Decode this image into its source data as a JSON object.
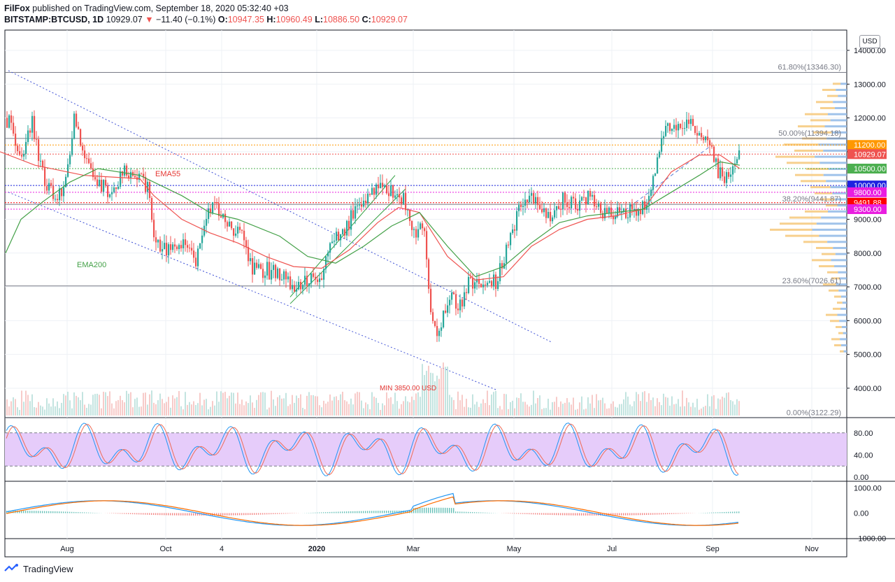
{
  "header": {
    "author": "FilFox",
    "published_text": " published on TradingView.com, September 18, 2020 05:32:40 +03",
    "symbol": "BITSTAMP:BTCUSD, 1D",
    "last": "10929.07",
    "change": "−11.40 (−0.1%)",
    "open_label": "O:",
    "open": "10947.35",
    "high_label": "H:",
    "high": "10960.49",
    "low_label": "L:",
    "low": "10886.50",
    "close_label": "C:",
    "close": "10929.07"
  },
  "currency_badge": "USD",
  "footer": {
    "brand": "TradingView"
  },
  "chart_data": {
    "type": "line",
    "x_axis": {
      "ticks": [
        "Aug",
        "Oct",
        "4",
        "2020",
        "Mar",
        "May",
        "Jul",
        "Sep",
        "Nov"
      ]
    },
    "price_axis": {
      "ticks": [
        4000,
        5000,
        6000,
        7000,
        8000,
        9000,
        10000,
        11000,
        12000,
        13000,
        14000
      ],
      "tick_labels": [
        "4000.00",
        "5000.00",
        "6000.00",
        "7000.00",
        "8000.00",
        "9000.00",
        "10000.00",
        "11000.00",
        "12000.00",
        "13000.00",
        "14000.00"
      ],
      "ylim": [
        3150,
        14600
      ]
    },
    "price_labels": [
      {
        "value": 11200,
        "text": "11200.00",
        "color": "#ff9800"
      },
      {
        "value": 10929.07,
        "text": "10929.07",
        "color": "#ef5350"
      },
      {
        "value": 10500,
        "text": "10500.00",
        "color": "#4caf50"
      },
      {
        "value": 10000,
        "text": "10000.00",
        "color": "#1e22e0"
      },
      {
        "value": 9800,
        "text": "9800.00",
        "color": "#e91ee0"
      },
      {
        "value": 9491.88,
        "text": "9491.88",
        "color": "#ff0000"
      },
      {
        "value": 9300,
        "text": "9300.00",
        "color": "#e91ee0"
      }
    ],
    "fibonacci": [
      {
        "level": "61.80%",
        "price": 13346.3,
        "label": "61.80%(13346.30)"
      },
      {
        "level": "50.00%",
        "price": 11394.18,
        "label": "50.00%(11394.18)"
      },
      {
        "level": "38.20%",
        "price": 9441.87,
        "label": "38.20%(9441.87)"
      },
      {
        "level": "23.60%",
        "price": 7026.61,
        "label": "23.60%(7026.61)"
      },
      {
        "level": "0.00%",
        "price": 3122.29,
        "label": "0.00%(3122.29)"
      }
    ],
    "annotations": [
      {
        "text": "EMA55",
        "color": "#e53935"
      },
      {
        "text": "EMA200",
        "color": "#43a047"
      },
      {
        "text": "MIN 3850.00 USD",
        "color": "#e53935"
      }
    ],
    "series": [
      {
        "name": "EMA55",
        "color": "#ef5350",
        "values": [
          [
            0,
            11000
          ],
          [
            50,
            10600
          ],
          [
            120,
            10300
          ],
          [
            200,
            10200
          ],
          [
            220,
            9700
          ],
          [
            260,
            9000
          ],
          [
            300,
            8600
          ],
          [
            340,
            8300
          ],
          [
            380,
            7900
          ],
          [
            420,
            7600
          ],
          [
            460,
            7550
          ],
          [
            500,
            8100
          ],
          [
            540,
            8900
          ],
          [
            570,
            9350
          ],
          [
            600,
            9200
          ],
          [
            640,
            7900
          ],
          [
            680,
            7200
          ],
          [
            720,
            7300
          ],
          [
            760,
            8200
          ],
          [
            800,
            8700
          ],
          [
            840,
            9000
          ],
          [
            880,
            9100
          ],
          [
            920,
            9300
          ],
          [
            960,
            10400
          ],
          [
            1000,
            10900
          ],
          [
            1030,
            10900
          ],
          [
            1058,
            10500
          ]
        ]
      },
      {
        "name": "EMA200",
        "color": "#43a047",
        "values": [
          [
            8,
            8000
          ],
          [
            30,
            9000
          ],
          [
            60,
            9500
          ],
          [
            100,
            10100
          ],
          [
            140,
            10500
          ],
          [
            200,
            10300
          ],
          [
            260,
            9700
          ],
          [
            300,
            9200
          ],
          [
            340,
            9000
          ],
          [
            400,
            8500
          ],
          [
            440,
            7900
          ],
          [
            480,
            7700
          ],
          [
            520,
            8200
          ],
          [
            560,
            8800
          ],
          [
            600,
            9200
          ],
          [
            640,
            8200
          ],
          [
            680,
            7300
          ],
          [
            720,
            7600
          ],
          [
            760,
            8300
          ],
          [
            800,
            8900
          ],
          [
            840,
            9100
          ],
          [
            880,
            9200
          ],
          [
            920,
            9300
          ],
          [
            960,
            9800
          ],
          [
            1000,
            10300
          ],
          [
            1030,
            10700
          ],
          [
            1058,
            10600
          ]
        ]
      }
    ],
    "candles_close": [
      [
        8,
        12000
      ],
      [
        20,
        11500
      ],
      [
        30,
        10700
      ],
      [
        45,
        11900
      ],
      [
        60,
        10300
      ],
      [
        75,
        9600
      ],
      [
        90,
        10000
      ],
      [
        105,
        11900
      ],
      [
        118,
        11000
      ],
      [
        130,
        10200
      ],
      [
        145,
        10000
      ],
      [
        160,
        9700
      ],
      [
        175,
        10400
      ],
      [
        190,
        10300
      ],
      [
        210,
        10000
      ],
      [
        220,
        8300
      ],
      [
        240,
        8100
      ],
      [
        260,
        8400
      ],
      [
        280,
        7800
      ],
      [
        295,
        9300
      ],
      [
        310,
        9300
      ],
      [
        330,
        8800
      ],
      [
        345,
        8600
      ],
      [
        360,
        7500
      ],
      [
        380,
        7500
      ],
      [
        400,
        7300
      ],
      [
        420,
        7000
      ],
      [
        440,
        7300
      ],
      [
        455,
        7200
      ],
      [
        470,
        8100
      ],
      [
        490,
        8700
      ],
      [
        510,
        9300
      ],
      [
        530,
        9800
      ],
      [
        545,
        10200
      ],
      [
        560,
        9800
      ],
      [
        575,
        9600
      ],
      [
        590,
        8700
      ],
      [
        605,
        8700
      ],
      [
        615,
        6200
      ],
      [
        625,
        5300
      ],
      [
        640,
        6800
      ],
      [
        655,
        6300
      ],
      [
        670,
        7100
      ],
      [
        690,
        7000
      ],
      [
        710,
        7200
      ],
      [
        730,
        8600
      ],
      [
        745,
        9500
      ],
      [
        760,
        9700
      ],
      [
        775,
        9200
      ],
      [
        790,
        9000
      ],
      [
        805,
        9700
      ],
      [
        820,
        9400
      ],
      [
        840,
        9600
      ],
      [
        860,
        9200
      ],
      [
        880,
        9150
      ],
      [
        900,
        9250
      ],
      [
        915,
        9300
      ],
      [
        930,
        9800
      ],
      [
        940,
        11000
      ],
      [
        950,
        11700
      ],
      [
        965,
        11800
      ],
      [
        985,
        12000
      ],
      [
        1000,
        11500
      ],
      [
        1015,
        11300
      ],
      [
        1025,
        10400
      ],
      [
        1035,
        10300
      ],
      [
        1045,
        10400
      ],
      [
        1058,
        10930
      ]
    ],
    "channels": [
      {
        "name": "descending upper",
        "from": [
          12,
          13400
        ],
        "to": [
          790,
          5350
        ]
      },
      {
        "name": "descending lower",
        "from": [
          12,
          9800
        ],
        "to": [
          710,
          3950
        ]
      },
      {
        "name": "ascending upper",
        "from": [
          415,
          6700
        ],
        "to": [
          565,
          10300
        ]
      },
      {
        "name": "ascending lower",
        "from": [
          415,
          6500
        ],
        "to": [
          580,
          9900
        ]
      }
    ],
    "stochastic": {
      "ticks": [
        80,
        40,
        0
      ],
      "tick_labels": [
        "80.00",
        "40.00",
        "0.00"
      ],
      "band": [
        20,
        80
      ]
    },
    "macd": {
      "ticks": [
        1000,
        0,
        -1000
      ],
      "tick_labels": [
        "1000.00",
        "0.00",
        "−1000.00"
      ]
    },
    "grid": true,
    "legend_placement": "none"
  }
}
